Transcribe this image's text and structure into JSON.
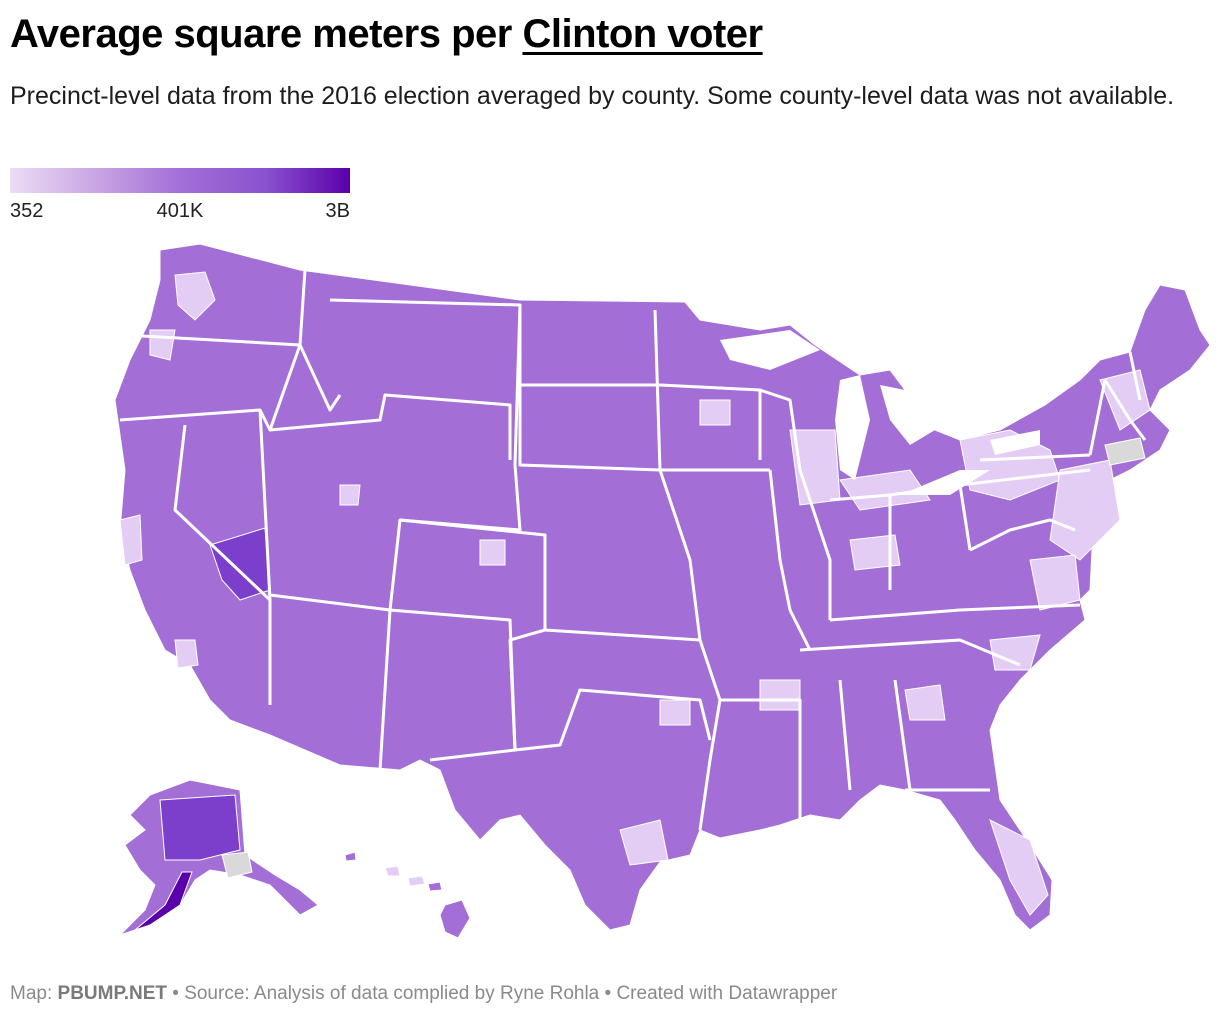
{
  "header": {
    "title_prefix": "Average square meters per ",
    "title_highlight": "Clinton voter",
    "subtitle": "Precinct-level data from the 2016 election averaged by county. Some county-level data was not available."
  },
  "legend": {
    "min_label": "352",
    "mid_label": "401K",
    "max_label": "3B",
    "colors": [
      "#ecdcf6",
      "#c9a6e4",
      "#a36fd7",
      "#8a52cf",
      "#5a00aa"
    ],
    "no_data_color": "#d9d9d9"
  },
  "map": {
    "base_color": "#a36fd7",
    "light_color": "#e4cdf4",
    "dark_color": "#7c3fcc",
    "darkest_color": "#5a00aa",
    "border_color": "#ffffff"
  },
  "footer": {
    "map_label": "Map:",
    "brand": "PBUMP.NET",
    "source": " • Source: Analysis of data complied by Ryne Rohla • Created with Datawrapper"
  }
}
